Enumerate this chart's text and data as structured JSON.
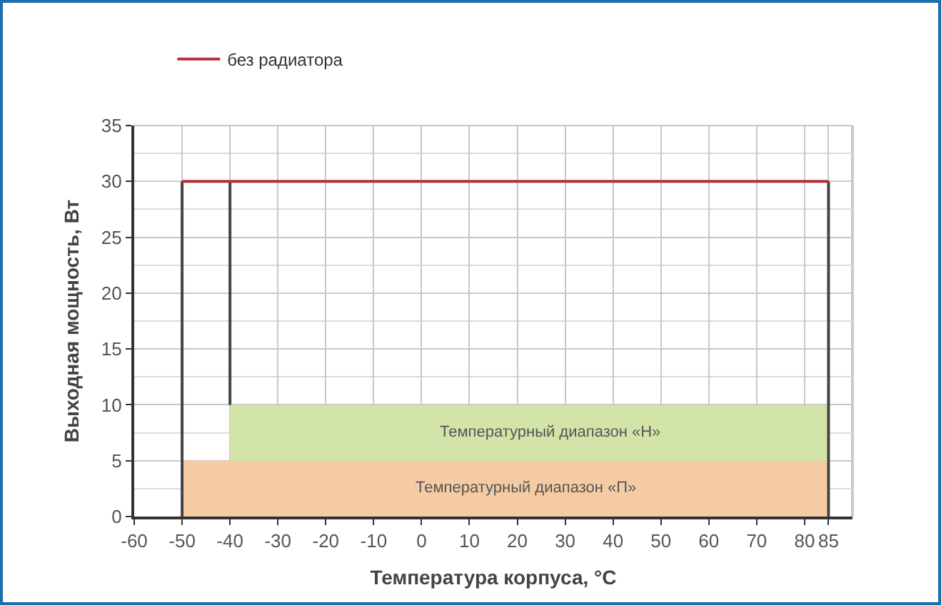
{
  "chart_data": {
    "type": "line",
    "xlabel": "Температура корпуса, °C",
    "ylabel": "Выходная мощность, Вт",
    "xlim": [
      -60,
      90
    ],
    "xticks": [
      -60,
      -50,
      -40,
      -30,
      -20,
      -10,
      0,
      10,
      20,
      30,
      40,
      50,
      60,
      70,
      80,
      85
    ],
    "ylim": [
      0,
      35
    ],
    "yticks": [
      0,
      5,
      10,
      15,
      20,
      25,
      30,
      35
    ],
    "grid": true,
    "legend": "top",
    "marker": "none",
    "line_style": "solid",
    "series": [
      {
        "type": "area",
        "name": "Температурный диапазон «Н»",
        "color": "#d3e4a9",
        "x": [
          -40,
          85
        ],
        "values": [
          10,
          10
        ]
      },
      {
        "type": "area",
        "name": "Температурный диапазон «П»",
        "color": "#f5cba4",
        "x": [
          -50,
          85
        ],
        "values": [
          5,
          5
        ]
      },
      {
        "color": "#444444",
        "x": [
          -50,
          -50
        ],
        "values": [
          0,
          30
        ]
      },
      {
        "color": "#444444",
        "x": [
          -40,
          -40
        ],
        "values": [
          10,
          30
        ]
      },
      {
        "color": "#444444",
        "x": [
          85,
          85
        ],
        "values": [
          0,
          30
        ]
      },
      {
        "name": "без радиатора",
        "color": "#b5303a",
        "x": [
          -50,
          85
        ],
        "values": [
          30,
          30
        ]
      }
    ]
  }
}
